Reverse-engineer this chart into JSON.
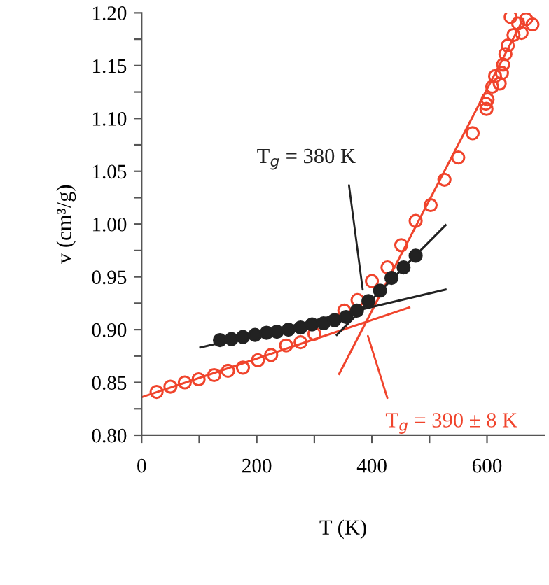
{
  "chart_data": {
    "type": "scatter",
    "xlabel": "T (K)",
    "ylabel": "v (cm³/g)",
    "xlim": [
      0,
      700
    ],
    "ylim": [
      0.8,
      1.2
    ],
    "xticks": [
      0,
      {
        "value": 100,
        "label": null
      },
      200,
      {
        "value": 300,
        "label": null
      },
      400,
      {
        "value": 500,
        "label": null
      },
      600
    ],
    "yticks": [
      {
        "value": 0.8,
        "label": "0.80"
      },
      {
        "value": 0.825,
        "label": null
      },
      {
        "value": 0.85,
        "label": "0.85"
      },
      {
        "value": 0.875,
        "label": null
      },
      {
        "value": 0.9,
        "label": "0.90"
      },
      {
        "value": 0.925,
        "label": null
      },
      {
        "value": 0.95,
        "label": "0.95"
      },
      {
        "value": 0.975,
        "label": null
      },
      {
        "value": 1.0,
        "label": "1.00"
      },
      {
        "value": 1.025,
        "label": null
      },
      {
        "value": 1.05,
        "label": "1.05"
      },
      {
        "value": 1.075,
        "label": null
      },
      {
        "value": 1.1,
        "label": "1.10"
      },
      {
        "value": 1.125,
        "label": null
      },
      {
        "value": 1.15,
        "label": "1.15"
      },
      {
        "value": 1.175,
        "label": null
      },
      {
        "value": 1.2,
        "label": "1.20"
      }
    ],
    "grid": false,
    "series": [
      {
        "type": "line",
        "color": "#f0442c",
        "marker": "none",
        "x": [
          0,
          465
        ],
        "values": [
          0.836,
          0.921
        ]
      },
      {
        "type": "line",
        "color": "#f0442c",
        "marker": "none",
        "x": [
          343,
          663
        ],
        "values": [
          0.858,
          1.194
        ]
      },
      {
        "type": "line",
        "color": "#222222",
        "marker": "none",
        "x": [
          102,
          528
        ],
        "values": [
          0.883,
          0.938
        ]
      },
      {
        "type": "line",
        "color": "#222222",
        "marker": "none",
        "x": [
          339,
          528
        ],
        "values": [
          0.895,
          0.999
        ]
      },
      {
        "color": "#f0442c",
        "marker": "circle",
        "x": [
          26,
          50,
          75,
          99,
          126,
          150,
          176,
          202,
          225,
          251,
          276,
          300,
          327,
          352,
          375,
          400,
          427,
          451,
          476,
          502,
          526,
          550,
          575,
          598,
          599,
          601,
          609,
          614,
          622,
          626,
          628,
          632,
          636,
          646,
          641,
          654,
          660,
          668,
          679
        ],
        "values": [
          0.841,
          0.846,
          0.85,
          0.853,
          0.857,
          0.861,
          0.864,
          0.871,
          0.876,
          0.885,
          0.888,
          0.896,
          null,
          0.918,
          0.928,
          0.946,
          0.959,
          0.98,
          1.003,
          1.018,
          1.042,
          1.063,
          1.086,
          1.114,
          1.109,
          1.118,
          1.13,
          1.14,
          1.133,
          1.143,
          1.151,
          1.161,
          1.169,
          1.179,
          1.196,
          1.19,
          1.181,
          1.194,
          1.189
        ]
      },
      {
        "color": "#222222",
        "marker": "circle",
        "x": [
          136,
          156,
          176,
          197,
          217,
          235,
          255,
          276,
          296,
          316,
          335,
          355,
          374,
          394,
          414,
          434,
          455,
          476
        ],
        "values": [
          0.89,
          0.891,
          0.893,
          0.895,
          0.897,
          0.898,
          0.9,
          0.902,
          0.905,
          0.906,
          0.909,
          0.912,
          0.918,
          0.927,
          0.937,
          0.949,
          0.959,
          0.97
        ]
      }
    ],
    "annotations": [
      {
        "text": "T$_{g}$ = 380 K",
        "x": 384,
        "y": 0.938
      },
      {
        "text": "T$_{g}$ = 390 ± 8 K",
        "x": 393,
        "y": 0.894
      }
    ]
  }
}
